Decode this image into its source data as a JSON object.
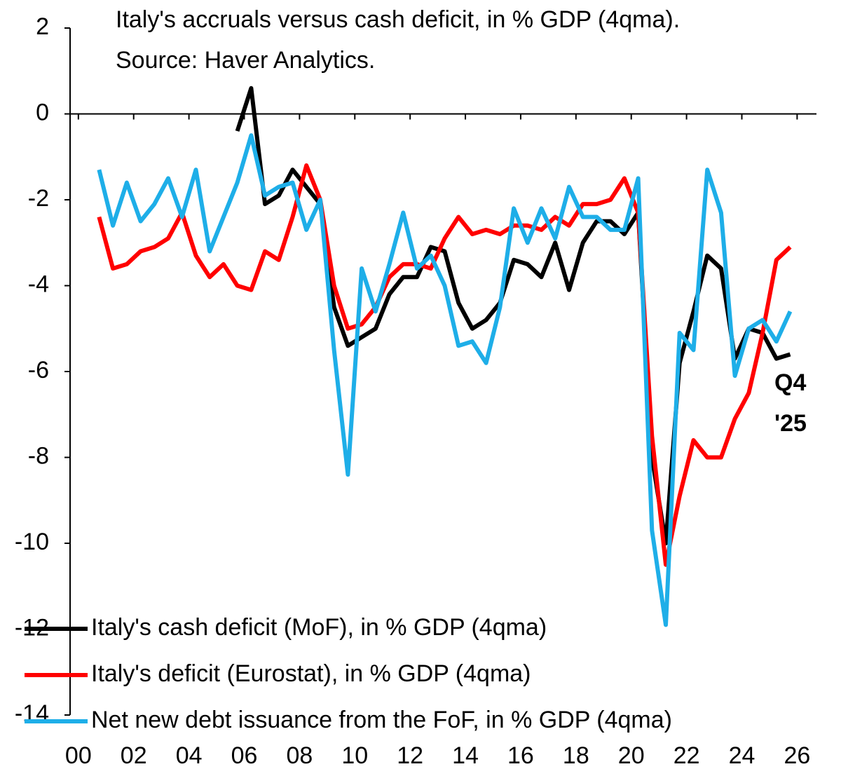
{
  "chart_data": {
    "type": "line",
    "title": "Italy's accruals versus cash deficit, in % GDP (4qma).",
    "subtitle": "Source: Haver Analytics.",
    "annotations": [
      "Q4",
      "'25"
    ],
    "x": [
      2000.75,
      2001.25,
      2001.75,
      2002.25,
      2002.75,
      2003.25,
      2003.75,
      2004.25,
      2004.75,
      2005.25,
      2005.75,
      2006.25,
      2006.75,
      2007.25,
      2007.75,
      2008.25,
      2008.75,
      2009.25,
      2009.75,
      2010.25,
      2010.75,
      2011.25,
      2011.75,
      2012.25,
      2012.75,
      2013.25,
      2013.75,
      2014.25,
      2014.75,
      2015.25,
      2015.75,
      2016.25,
      2016.75,
      2017.25,
      2017.75,
      2018.25,
      2018.75,
      2019.25,
      2019.75,
      2020.25,
      2020.75,
      2021.25,
      2021.75,
      2022.25,
      2022.75,
      2023.25,
      2023.75,
      2024.25,
      2024.75,
      2025.25,
      2025.75
    ],
    "series": [
      {
        "name": "Italy's cash deficit (MoF), in % GDP (4qma)",
        "color": "#000000",
        "values": [
          null,
          null,
          null,
          null,
          null,
          null,
          null,
          null,
          null,
          null,
          -0.4,
          0.6,
          -2.1,
          -1.9,
          -1.3,
          -1.7,
          -2.1,
          -4.5,
          -5.4,
          -5.2,
          -5.0,
          -4.2,
          -3.8,
          -3.8,
          -3.1,
          -3.2,
          -4.4,
          -5.0,
          -4.8,
          -4.4,
          -3.4,
          -3.5,
          -3.8,
          -3.0,
          -4.1,
          -3.0,
          -2.5,
          -2.5,
          -2.8,
          -2.3,
          -8.0,
          -10.0,
          -5.8,
          -4.6,
          -3.3,
          -3.6,
          -5.7,
          -5.0,
          -5.1,
          -5.7,
          -5.6
        ]
      },
      {
        "name": "Italy's deficit (Eurostat), in % GDP (4qma)",
        "color": "#ff0000",
        "values": [
          -2.4,
          -3.6,
          -3.5,
          -3.2,
          -3.1,
          -2.9,
          -2.3,
          -3.3,
          -3.8,
          -3.5,
          -4.0,
          -4.1,
          -3.2,
          -3.4,
          -2.4,
          -1.2,
          -2.0,
          -4.0,
          -5.0,
          -4.9,
          -4.5,
          -3.8,
          -3.5,
          -3.5,
          -3.6,
          -2.9,
          -2.4,
          -2.8,
          -2.7,
          -2.8,
          -2.6,
          -2.6,
          -2.7,
          -2.4,
          -2.6,
          -2.1,
          -2.1,
          -2.0,
          -1.5,
          -2.3,
          -7.5,
          -10.5,
          -8.9,
          -7.6,
          -8.0,
          -8.0,
          -7.1,
          -6.5,
          -5.1,
          -3.4,
          -3.1
        ]
      },
      {
        "name": "Net new debt issuance from the FoF, in % GDP (4qma)",
        "color": "#1eaee8",
        "values": [
          -1.3,
          -2.6,
          -1.6,
          -2.5,
          -2.1,
          -1.5,
          -2.4,
          -1.3,
          -3.2,
          -2.4,
          -1.6,
          -0.5,
          -1.9,
          -1.7,
          -1.6,
          -2.7,
          -2.0,
          -5.5,
          -8.4,
          -3.6,
          -4.6,
          -3.5,
          -2.3,
          -3.6,
          -3.3,
          -4.0,
          -5.4,
          -5.3,
          -5.8,
          -4.5,
          -2.2,
          -3.0,
          -2.2,
          -2.9,
          -1.7,
          -2.4,
          -2.4,
          -2.7,
          -2.7,
          -1.5,
          -9.7,
          -11.9,
          -5.1,
          -5.5,
          -1.3,
          -2.3,
          -6.1,
          -5.0,
          -4.8,
          -5.3,
          -4.6
        ]
      }
    ],
    "xlim": [
      1999.7,
      2026.7
    ],
    "ylim": [
      -14,
      2
    ],
    "xticks": [
      {
        "value": 2000,
        "label": "00"
      },
      {
        "value": 2002,
        "label": "02"
      },
      {
        "value": 2004,
        "label": "04"
      },
      {
        "value": 2006,
        "label": "06"
      },
      {
        "value": 2008,
        "label": "08"
      },
      {
        "value": 2010,
        "label": "10"
      },
      {
        "value": 2012,
        "label": "12"
      },
      {
        "value": 2014,
        "label": "14"
      },
      {
        "value": 2016,
        "label": "16"
      },
      {
        "value": 2018,
        "label": "18"
      },
      {
        "value": 2020,
        "label": "20"
      },
      {
        "value": 2022,
        "label": "22"
      },
      {
        "value": 2024,
        "label": "24"
      },
      {
        "value": 2026,
        "label": "26"
      }
    ],
    "yticks": [
      2,
      0,
      -2,
      -4,
      -6,
      -8,
      -10,
      -12,
      -14
    ],
    "grid": false,
    "legend": "bottom-left"
  }
}
